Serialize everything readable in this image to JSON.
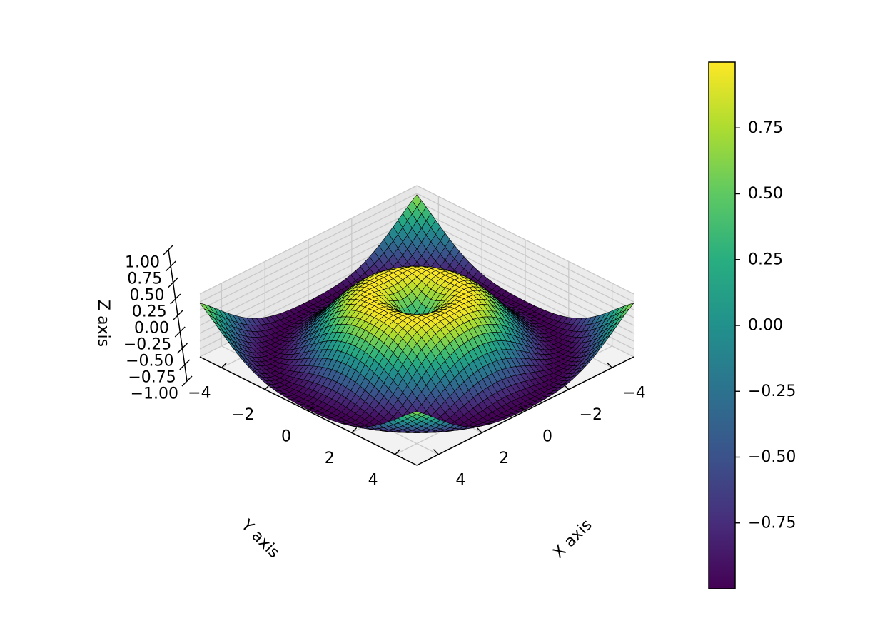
{
  "chart_data": {
    "type": "surface3d",
    "title": "",
    "function": "z = sin(sqrt(x^2 + y^2))",
    "x": {
      "label": "X axis",
      "ticks": [
        -4,
        -2,
        0,
        2,
        4
      ],
      "tick_labels": [
        "−4",
        "−2",
        "0",
        "2",
        "4"
      ],
      "range": [
        -5,
        5
      ]
    },
    "y": {
      "label": "Y axis",
      "ticks": [
        -4,
        -2,
        0,
        2,
        4
      ],
      "tick_labels": [
        "−4",
        "−2",
        "0",
        "2",
        "4"
      ],
      "range": [
        -5,
        5
      ]
    },
    "z": {
      "label": "Z axis",
      "ticks": [
        1.0,
        0.75,
        0.5,
        0.25,
        0.0,
        -0.25,
        -0.5,
        -0.75,
        -1.0
      ],
      "tick_labels": [
        "1.00",
        "0.75",
        "0.50",
        "0.25",
        "0.00",
        "−0.25",
        "−0.50",
        "−0.75",
        "−1.00"
      ],
      "range": [
        -1,
        1
      ]
    },
    "view": {
      "elevation_deg": 45,
      "azimuth_deg": 45
    },
    "colormap": "viridis",
    "edge_color": "#000000",
    "grid": true,
    "colorbar": {
      "placement": "right",
      "range": [
        -1,
        1
      ],
      "ticks": [
        0.75,
        0.5,
        0.25,
        0.0,
        -0.25,
        -0.5,
        -0.75
      ],
      "tick_labels": [
        "0.75",
        "0.50",
        "0.25",
        "0.00",
        "−0.25",
        "−0.50",
        "−0.75"
      ]
    }
  }
}
